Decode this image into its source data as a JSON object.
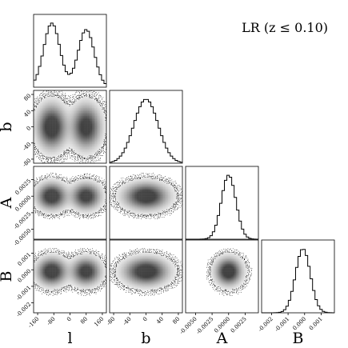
{
  "chart_data": {
    "type": "corner",
    "title": "LR (z ≤ 0.10)",
    "parameters": [
      "l",
      "b",
      "A",
      "B"
    ],
    "marginals": [
      {
        "parameter": "l",
        "range": [
          -180,
          180
        ],
        "shape": "bimodal",
        "peaks": [
          {
            "mean": -90,
            "sd": 40,
            "weight": 1.0
          },
          {
            "mean": 80,
            "sd": 40,
            "weight": 0.9
          }
        ]
      },
      {
        "parameter": "b",
        "range": [
          -90,
          90
        ],
        "shape": "unimodal",
        "peaks": [
          {
            "mean": 0,
            "sd": 30,
            "weight": 1.0
          }
        ]
      },
      {
        "parameter": "A",
        "range": [
          -0.0065,
          0.0045
        ],
        "shape": "unimodal",
        "peaks": [
          {
            "mean": 0.0,
            "sd": 0.0011,
            "weight": 1.0
          }
        ]
      },
      {
        "parameter": "B",
        "range": [
          -0.0026,
          0.0018
        ],
        "shape": "unimodal",
        "peaks": [
          {
            "mean": -0.0001,
            "sd": 0.00045,
            "weight": 1.0
          }
        ]
      }
    ],
    "panels_2d": [
      {
        "x": "l",
        "y": "b"
      },
      {
        "x": "l",
        "y": "A"
      },
      {
        "x": "b",
        "y": "A"
      },
      {
        "x": "l",
        "y": "B"
      },
      {
        "x": "b",
        "y": "B"
      },
      {
        "x": "A",
        "y": "B"
      }
    ],
    "ticks": {
      "l": [
        -160,
        -80,
        0,
        80,
        160
      ],
      "b": [
        -80,
        -40,
        0,
        40,
        80
      ],
      "A": [
        -0.005,
        -0.0025,
        0.0,
        0.0025
      ],
      "B": [
        -0.002,
        -0.001,
        0.0,
        0.001
      ]
    },
    "tick_labels": {
      "l": [
        "-160",
        "-80",
        "0",
        "80",
        "160"
      ],
      "b": [
        "-80",
        "-40",
        "0",
        "40",
        "80"
      ],
      "A": [
        "-0.0050",
        "-0.0025",
        "0.0000",
        "0.0025"
      ],
      "B": [
        "-0.002",
        "-0.001",
        "0.000",
        "0.001"
      ]
    },
    "y_tick_labels": {
      "b": [
        "-80",
        "-40",
        "0",
        "40",
        "80"
      ],
      "A": [
        "-0.0050",
        "-0.0025",
        "0.0000",
        "0.0025"
      ],
      "B": [
        "-0.002",
        "-0.001",
        "0.000",
        "0.001"
      ]
    },
    "axis_labels": {
      "x": [
        "l",
        "b",
        "A",
        "B"
      ],
      "y": [
        "b",
        "A",
        "B"
      ]
    },
    "colors": {
      "density": "#000000",
      "background": "#ffffff"
    }
  }
}
